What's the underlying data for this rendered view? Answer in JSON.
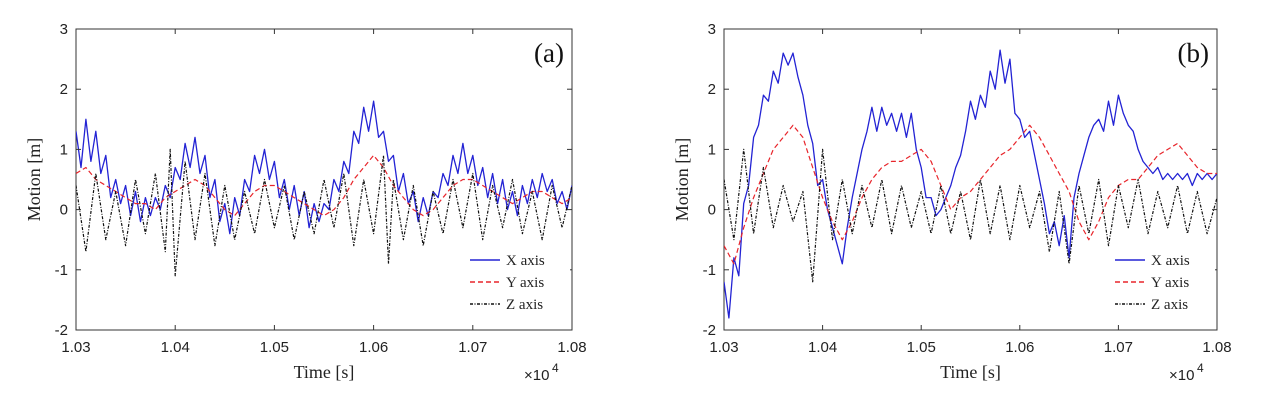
{
  "chart_data": [
    {
      "type": "line",
      "panel_label": "(a)",
      "xlabel": "Time [s]",
      "ylabel": "Motion [m]",
      "x_multiplier": "×10",
      "x_multiplier_exp": "4",
      "xlim": [
        1.03,
        1.08
      ],
      "ylim": [
        -2,
        3
      ],
      "xticks": [
        "1.03",
        "1.04",
        "1.05",
        "1.06",
        "1.07",
        "1.08"
      ],
      "yticks": [
        "-2",
        "-1",
        "0",
        "1",
        "2",
        "3"
      ],
      "grid": false,
      "legend_position": "lower-right",
      "series": [
        {
          "name": "X axis",
          "color": "#2323d4",
          "dash": "solid",
          "x": [
            1.03,
            1.0305,
            1.031,
            1.0315,
            1.032,
            1.0325,
            1.033,
            1.0335,
            1.034,
            1.0345,
            1.035,
            1.0355,
            1.036,
            1.0365,
            1.037,
            1.0375,
            1.038,
            1.0385,
            1.039,
            1.0395,
            1.04,
            1.0405,
            1.041,
            1.0415,
            1.042,
            1.0425,
            1.043,
            1.0435,
            1.044,
            1.0445,
            1.045,
            1.0455,
            1.046,
            1.0465,
            1.047,
            1.0475,
            1.048,
            1.0485,
            1.049,
            1.0495,
            1.05,
            1.0505,
            1.051,
            1.0515,
            1.052,
            1.0525,
            1.053,
            1.0535,
            1.054,
            1.0545,
            1.055,
            1.0555,
            1.056,
            1.0565,
            1.057,
            1.0575,
            1.058,
            1.0585,
            1.059,
            1.0595,
            1.06,
            1.0605,
            1.061,
            1.0615,
            1.062,
            1.0625,
            1.063,
            1.0635,
            1.064,
            1.0645,
            1.065,
            1.0655,
            1.066,
            1.0665,
            1.067,
            1.0675,
            1.068,
            1.0685,
            1.069,
            1.0695,
            1.07,
            1.0705,
            1.071,
            1.0715,
            1.072,
            1.0725,
            1.073,
            1.0735,
            1.074,
            1.0745,
            1.075,
            1.0755,
            1.076,
            1.0765,
            1.077,
            1.0775,
            1.078,
            1.0785,
            1.079,
            1.0795,
            1.08
          ],
          "y": [
            1.3,
            0.7,
            1.5,
            0.8,
            1.3,
            0.6,
            0.9,
            0.2,
            0.5,
            0.1,
            0.4,
            -0.1,
            0.3,
            -0.2,
            0.2,
            -0.1,
            0.2,
            0.0,
            0.4,
            0.2,
            0.7,
            0.5,
            1.1,
            0.7,
            1.2,
            0.6,
            0.9,
            0.2,
            0.5,
            -0.2,
            0.1,
            -0.4,
            0.2,
            -0.1,
            0.5,
            0.3,
            0.9,
            0.6,
            1.0,
            0.5,
            0.8,
            0.2,
            0.5,
            0.0,
            0.4,
            -0.1,
            0.3,
            -0.3,
            0.1,
            -0.2,
            0.1,
            0.0,
            0.5,
            0.3,
            0.8,
            0.6,
            1.3,
            1.1,
            1.7,
            1.3,
            1.8,
            1.2,
            1.3,
            0.8,
            0.9,
            0.3,
            0.6,
            0.1,
            0.3,
            -0.2,
            0.2,
            -0.1,
            0.3,
            0.2,
            0.6,
            0.4,
            0.9,
            0.6,
            1.1,
            0.6,
            0.9,
            0.4,
            0.7,
            0.2,
            0.6,
            0.1,
            0.5,
            0.0,
            0.3,
            -0.1,
            0.4,
            0.1,
            0.5,
            0.2,
            0.6,
            0.3,
            0.5,
            0.1,
            0.3,
            0.0,
            0.4
          ]
        },
        {
          "name": "Y axis",
          "color": "#e8252b",
          "dash": "5,3",
          "x": [
            1.03,
            1.031,
            1.032,
            1.033,
            1.034,
            1.035,
            1.036,
            1.037,
            1.038,
            1.039,
            1.04,
            1.041,
            1.042,
            1.043,
            1.044,
            1.045,
            1.046,
            1.047,
            1.048,
            1.049,
            1.05,
            1.051,
            1.052,
            1.053,
            1.054,
            1.055,
            1.056,
            1.057,
            1.058,
            1.059,
            1.06,
            1.061,
            1.062,
            1.063,
            1.064,
            1.065,
            1.066,
            1.067,
            1.068,
            1.069,
            1.07,
            1.071,
            1.072,
            1.073,
            1.074,
            1.075,
            1.076,
            1.077,
            1.078,
            1.079,
            1.08
          ],
          "y": [
            0.6,
            0.7,
            0.5,
            0.4,
            0.3,
            0.2,
            0.1,
            0.1,
            0.0,
            0.2,
            0.3,
            0.4,
            0.5,
            0.4,
            0.2,
            0.0,
            -0.1,
            0.1,
            0.3,
            0.4,
            0.4,
            0.3,
            0.2,
            0.1,
            0.0,
            -0.1,
            0.0,
            0.2,
            0.5,
            0.7,
            0.9,
            0.7,
            0.4,
            0.2,
            0.0,
            -0.1,
            0.0,
            0.2,
            0.4,
            0.5,
            0.5,
            0.4,
            0.3,
            0.2,
            0.1,
            0.2,
            0.3,
            0.3,
            0.2,
            0.1,
            0.2
          ]
        },
        {
          "name": "Z axis",
          "color": "#111111",
          "dash": "3,1.5,1,1.5",
          "x": [
            1.03,
            1.031,
            1.032,
            1.033,
            1.034,
            1.035,
            1.036,
            1.037,
            1.038,
            1.039,
            1.0395,
            1.04,
            1.041,
            1.042,
            1.043,
            1.044,
            1.045,
            1.046,
            1.047,
            1.048,
            1.049,
            1.05,
            1.051,
            1.052,
            1.053,
            1.054,
            1.055,
            1.056,
            1.057,
            1.058,
            1.059,
            1.06,
            1.061,
            1.0615,
            1.062,
            1.063,
            1.064,
            1.065,
            1.066,
            1.067,
            1.068,
            1.069,
            1.07,
            1.071,
            1.072,
            1.073,
            1.074,
            1.075,
            1.076,
            1.077,
            1.078,
            1.079,
            1.08
          ],
          "y": [
            0.4,
            -0.7,
            0.6,
            -0.5,
            0.3,
            -0.6,
            0.5,
            -0.4,
            0.6,
            -0.7,
            1.0,
            -1.1,
            0.8,
            -0.5,
            0.6,
            -0.6,
            0.4,
            -0.5,
            0.3,
            -0.4,
            0.5,
            -0.3,
            0.4,
            -0.5,
            0.3,
            -0.4,
            0.5,
            -0.3,
            0.6,
            -0.6,
            0.5,
            -0.4,
            0.9,
            -0.9,
            0.5,
            -0.5,
            0.4,
            -0.6,
            0.3,
            -0.4,
            0.5,
            -0.3,
            0.6,
            -0.5,
            0.4,
            -0.3,
            0.5,
            -0.4,
            0.3,
            -0.5,
            0.4,
            -0.3,
            0.4
          ]
        }
      ]
    },
    {
      "type": "line",
      "panel_label": "(b)",
      "xlabel": "Time [s]",
      "ylabel": "Motion [m]",
      "x_multiplier": "×10",
      "x_multiplier_exp": "4",
      "xlim": [
        1.03,
        1.08
      ],
      "ylim": [
        -2,
        3
      ],
      "xticks": [
        "1.03",
        "1.04",
        "1.05",
        "1.06",
        "1.07",
        "1.08"
      ],
      "yticks": [
        "-2",
        "-1",
        "0",
        "1",
        "2",
        "3"
      ],
      "grid": false,
      "legend_position": "lower-right",
      "series": [
        {
          "name": "X axis",
          "color": "#2323d4",
          "dash": "solid",
          "x": [
            1.03,
            1.0305,
            1.031,
            1.0315,
            1.032,
            1.0325,
            1.033,
            1.0335,
            1.034,
            1.0345,
            1.035,
            1.0355,
            1.036,
            1.0365,
            1.037,
            1.0375,
            1.038,
            1.0385,
            1.039,
            1.0395,
            1.04,
            1.0405,
            1.041,
            1.0415,
            1.042,
            1.0425,
            1.043,
            1.0435,
            1.044,
            1.0445,
            1.045,
            1.0455,
            1.046,
            1.0465,
            1.047,
            1.0475,
            1.048,
            1.0485,
            1.049,
            1.0495,
            1.05,
            1.0505,
            1.051,
            1.0515,
            1.052,
            1.0525,
            1.053,
            1.0535,
            1.054,
            1.0545,
            1.055,
            1.0555,
            1.056,
            1.0565,
            1.057,
            1.0575,
            1.058,
            1.0585,
            1.059,
            1.0595,
            1.06,
            1.0605,
            1.061,
            1.0615,
            1.062,
            1.0625,
            1.063,
            1.0635,
            1.064,
            1.0645,
            1.065,
            1.0655,
            1.066,
            1.0665,
            1.067,
            1.0675,
            1.068,
            1.0685,
            1.069,
            1.0695,
            1.07,
            1.0705,
            1.071,
            1.0715,
            1.072,
            1.0725,
            1.073,
            1.0735,
            1.074,
            1.0745,
            1.075,
            1.0755,
            1.076,
            1.0765,
            1.077,
            1.0775,
            1.078,
            1.0785,
            1.079,
            1.0795,
            1.08
          ],
          "y": [
            -1.2,
            -1.8,
            -0.8,
            -1.1,
            0.1,
            0.4,
            1.2,
            1.4,
            1.9,
            1.8,
            2.3,
            2.1,
            2.6,
            2.4,
            2.6,
            2.2,
            1.9,
            1.4,
            1.1,
            0.4,
            0.5,
            0.0,
            -0.3,
            -0.6,
            -0.9,
            -0.3,
            0.2,
            0.6,
            1.0,
            1.3,
            1.7,
            1.3,
            1.7,
            1.4,
            1.6,
            1.3,
            1.6,
            1.2,
            1.6,
            1.0,
            0.7,
            0.2,
            0.2,
            -0.1,
            0.0,
            0.2,
            0.4,
            0.7,
            0.9,
            1.3,
            1.8,
            1.5,
            1.9,
            1.7,
            2.3,
            2.0,
            2.65,
            2.1,
            2.5,
            1.6,
            1.5,
            1.2,
            1.3,
            0.9,
            0.5,
            0.1,
            -0.4,
            -0.2,
            -0.6,
            -0.1,
            -0.8,
            0.2,
            0.6,
            0.9,
            1.2,
            1.4,
            1.5,
            1.3,
            1.8,
            1.4,
            1.9,
            1.6,
            1.4,
            1.3,
            1.0,
            0.8,
            0.7,
            0.6,
            0.7,
            0.5,
            0.6,
            0.5,
            0.6,
            0.5,
            0.6,
            0.4,
            0.6,
            0.5,
            0.6,
            0.5,
            0.6
          ]
        },
        {
          "name": "Y axis",
          "color": "#e8252b",
          "dash": "5,3",
          "x": [
            1.03,
            1.031,
            1.032,
            1.033,
            1.034,
            1.035,
            1.036,
            1.037,
            1.038,
            1.039,
            1.04,
            1.041,
            1.042,
            1.043,
            1.044,
            1.045,
            1.046,
            1.047,
            1.048,
            1.049,
            1.05,
            1.051,
            1.052,
            1.053,
            1.054,
            1.055,
            1.056,
            1.057,
            1.058,
            1.059,
            1.06,
            1.061,
            1.062,
            1.063,
            1.064,
            1.065,
            1.066,
            1.067,
            1.068,
            1.069,
            1.07,
            1.071,
            1.072,
            1.073,
            1.074,
            1.075,
            1.076,
            1.077,
            1.078,
            1.079,
            1.08
          ],
          "y": [
            -0.6,
            -0.9,
            -0.3,
            0.2,
            0.6,
            1.0,
            1.2,
            1.4,
            1.2,
            0.7,
            0.2,
            -0.2,
            -0.5,
            -0.2,
            0.2,
            0.5,
            0.7,
            0.8,
            0.8,
            0.9,
            1.0,
            0.8,
            0.4,
            0.0,
            0.2,
            0.3,
            0.5,
            0.7,
            0.9,
            1.0,
            1.2,
            1.4,
            1.2,
            0.9,
            0.6,
            0.3,
            -0.2,
            -0.5,
            -0.2,
            0.2,
            0.4,
            0.5,
            0.5,
            0.7,
            0.9,
            1.0,
            1.1,
            0.9,
            0.7,
            0.6,
            0.6
          ]
        },
        {
          "name": "Z axis",
          "color": "#111111",
          "dash": "3,1.5,1,1.5",
          "x": [
            1.03,
            1.031,
            1.032,
            1.033,
            1.034,
            1.035,
            1.036,
            1.037,
            1.038,
            1.039,
            1.04,
            1.041,
            1.042,
            1.043,
            1.044,
            1.045,
            1.046,
            1.047,
            1.048,
            1.049,
            1.05,
            1.051,
            1.052,
            1.053,
            1.054,
            1.055,
            1.056,
            1.057,
            1.058,
            1.059,
            1.06,
            1.061,
            1.062,
            1.063,
            1.064,
            1.065,
            1.066,
            1.067,
            1.068,
            1.069,
            1.07,
            1.071,
            1.072,
            1.073,
            1.074,
            1.075,
            1.076,
            1.077,
            1.078,
            1.079,
            1.08
          ],
          "y": [
            0.5,
            -0.5,
            1.0,
            -0.4,
            0.7,
            -0.3,
            0.4,
            -0.2,
            0.3,
            -1.2,
            1.0,
            -0.5,
            0.5,
            -0.4,
            0.4,
            -0.3,
            0.5,
            -0.4,
            0.4,
            -0.3,
            0.3,
            -0.4,
            0.4,
            -0.4,
            0.3,
            -0.5,
            0.5,
            -0.4,
            0.4,
            -0.5,
            0.4,
            -0.3,
            0.3,
            -0.7,
            0.3,
            -0.9,
            0.4,
            -0.4,
            0.5,
            -0.6,
            0.4,
            -0.3,
            0.5,
            -0.4,
            0.3,
            -0.3,
            0.4,
            -0.4,
            0.3,
            -0.4,
            0.2
          ]
        }
      ]
    }
  ]
}
